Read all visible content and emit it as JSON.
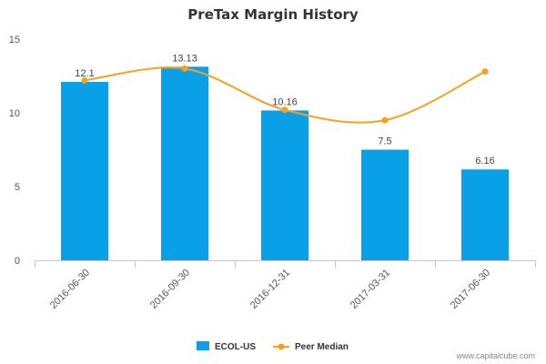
{
  "colors": {
    "bar": "#0aa0e8",
    "line": "#f5a21a",
    "axis": "#c0c7d6",
    "grid": "#e6e6e6"
  },
  "chart_data": {
    "type": "bar",
    "title": "PreTax Margin History",
    "categories": [
      "2016-06-30",
      "2016-09-30",
      "2016-12-31",
      "2017-03-31",
      "2017-06-30"
    ],
    "series": [
      {
        "name": "ECOL-US",
        "type": "bar",
        "values": [
          12.1,
          13.13,
          10.16,
          7.5,
          6.16
        ],
        "labels": [
          "12.1",
          "13.13",
          "10.16",
          "7.5",
          "6.16"
        ]
      },
      {
        "name": "Peer Median",
        "type": "line",
        "values": [
          12.2,
          13.0,
          10.2,
          9.5,
          12.8
        ]
      }
    ],
    "yticks": [
      "0",
      "5",
      "10",
      "15"
    ],
    "ylim": [
      0,
      15
    ],
    "legend_position": "bottom"
  },
  "footer": {
    "credit": "www.capitalcube.com"
  }
}
